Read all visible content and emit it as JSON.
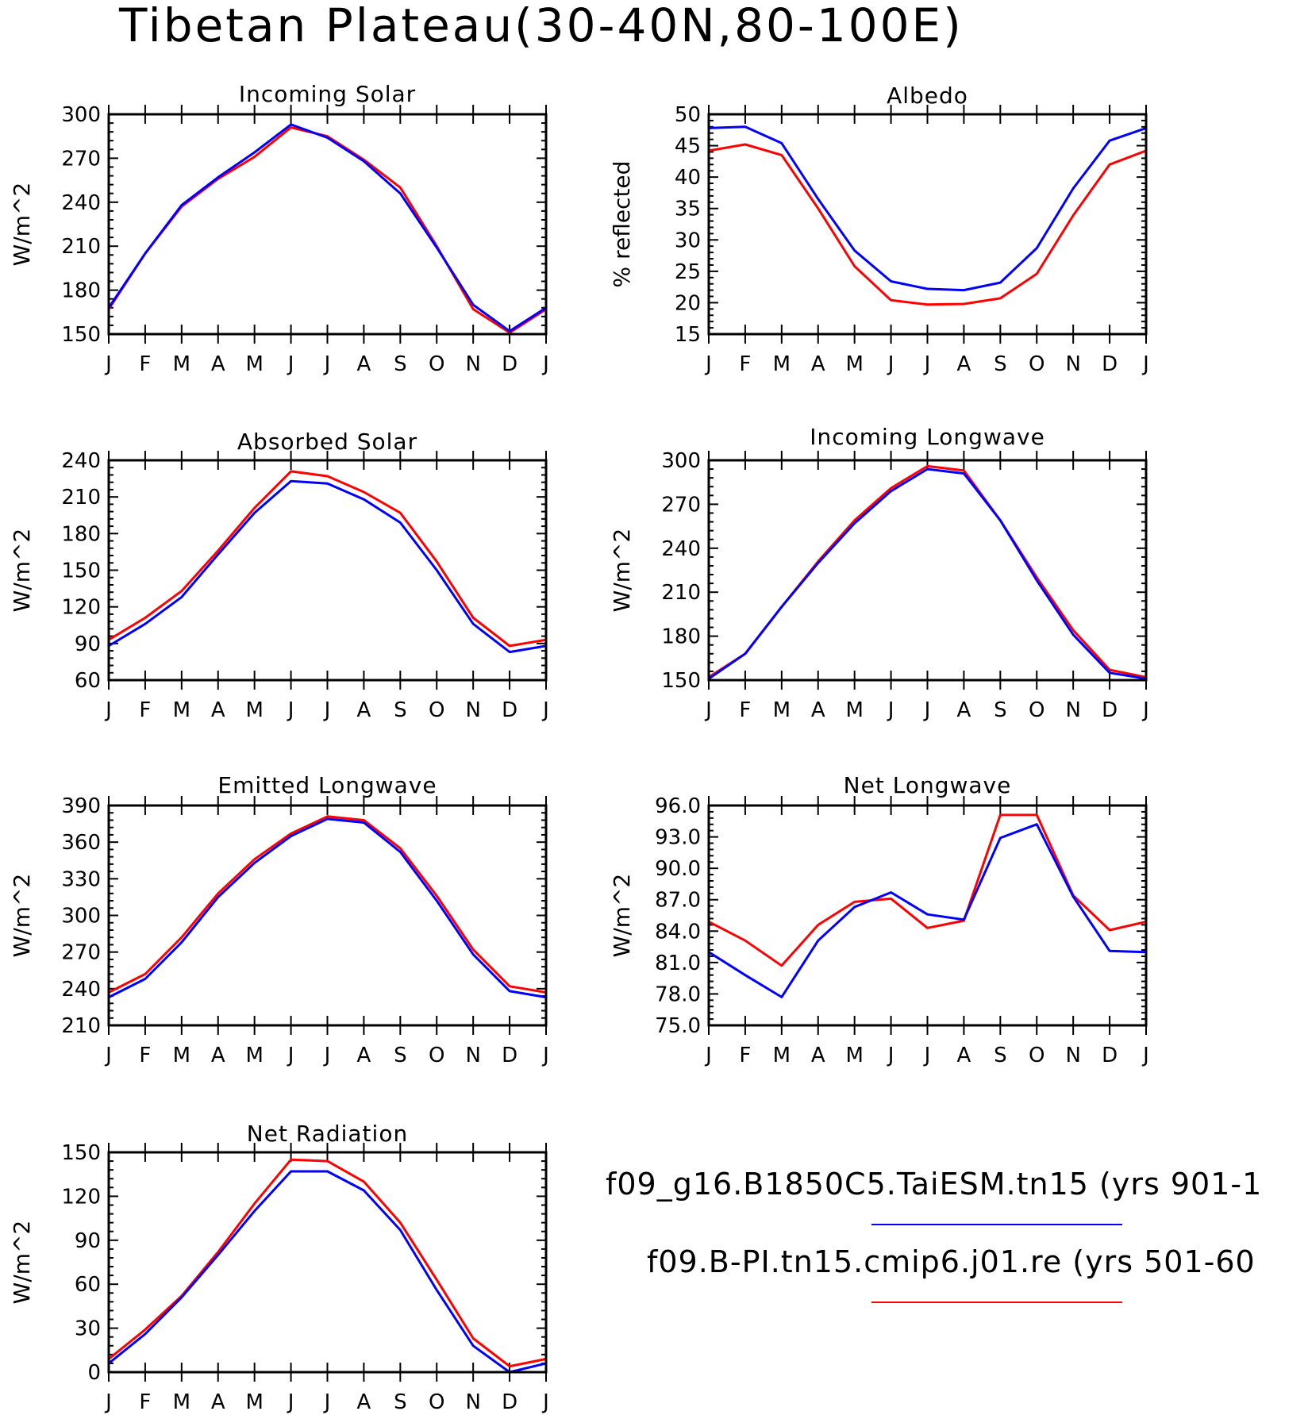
{
  "figure_title": "Tibetan Plateau(30-40N,80-100E)",
  "legend": {
    "entries": [
      {
        "label": "f09_g16.B1850C5.TaiESM.tn15 (yrs 901-1",
        "color": "#0000ff"
      },
      {
        "label": "f09.B-PI.tn15.cmip6.j01.re (yrs 501-60",
        "color": "#ff0000"
      }
    ]
  },
  "chart_data": [
    {
      "type": "line",
      "title": "Incoming Solar",
      "ylabel": "W/m^2",
      "categories": [
        "J",
        "F",
        "M",
        "A",
        "M",
        "J",
        "J",
        "A",
        "S",
        "O",
        "N",
        "D",
        "J"
      ],
      "ylim": [
        150,
        300
      ],
      "yticks": [
        "150",
        "180",
        "210",
        "240",
        "270",
        "300"
      ],
      "series": [
        {
          "color": "#ff0000",
          "values": [
            167,
            205,
            237,
            256,
            271,
            291,
            285,
            269,
            250,
            210,
            167,
            151,
            167
          ]
        },
        {
          "color": "#0000ff",
          "values": [
            168,
            205,
            238,
            257,
            274,
            293,
            284,
            268,
            246,
            209,
            170,
            152,
            168
          ]
        }
      ]
    },
    {
      "type": "line",
      "title": "Albedo",
      "ylabel": "% reflected",
      "categories": [
        "J",
        "F",
        "M",
        "A",
        "M",
        "J",
        "J",
        "A",
        "S",
        "O",
        "N",
        "D",
        "J"
      ],
      "ylim": [
        15,
        50
      ],
      "yticks": [
        "15",
        "20",
        "25",
        "30",
        "35",
        "40",
        "45",
        "50"
      ],
      "series": [
        {
          "color": "#ff0000",
          "values": [
            44.2,
            45.2,
            43.5,
            35.0,
            25.8,
            20.4,
            19.7,
            19.8,
            20.7,
            24.6,
            33.9,
            42.0,
            44.2
          ]
        },
        {
          "color": "#0000ff",
          "values": [
            47.8,
            48.0,
            45.4,
            36.5,
            28.3,
            23.4,
            22.2,
            22.0,
            23.2,
            28.7,
            38.2,
            45.8,
            47.8
          ]
        }
      ]
    },
    {
      "type": "line",
      "title": "Absorbed Solar",
      "ylabel": "W/m^2",
      "categories": [
        "J",
        "F",
        "M",
        "A",
        "M",
        "J",
        "J",
        "A",
        "S",
        "O",
        "N",
        "D",
        "J"
      ],
      "ylim": [
        60,
        240
      ],
      "yticks": [
        "60",
        "90",
        "120",
        "150",
        "180",
        "210",
        "240"
      ],
      "series": [
        {
          "color": "#ff0000",
          "values": [
            93,
            111,
            133,
            166,
            201,
            231,
            227,
            214,
            197,
            157,
            111,
            88,
            93
          ]
        },
        {
          "color": "#0000ff",
          "values": [
            88,
            106,
            128,
            163,
            197,
            223,
            221,
            208,
            189,
            150,
            106,
            83,
            88
          ]
        }
      ]
    },
    {
      "type": "line",
      "title": "Incoming Longwave",
      "ylabel": "W/m^2",
      "categories": [
        "J",
        "F",
        "M",
        "A",
        "M",
        "J",
        "J",
        "A",
        "S",
        "O",
        "N",
        "D",
        "J"
      ],
      "ylim": [
        150,
        300
      ],
      "yticks": [
        "150",
        "180",
        "210",
        "240",
        "270",
        "300"
      ],
      "series": [
        {
          "color": "#ff0000",
          "values": [
            152,
            168,
            200,
            231,
            259,
            281,
            296,
            293,
            259,
            220,
            184,
            157,
            152
          ]
        },
        {
          "color": "#0000ff",
          "values": [
            151,
            168,
            200,
            230,
            257,
            279,
            294,
            291,
            259,
            218,
            181,
            155,
            151
          ]
        }
      ]
    },
    {
      "type": "line",
      "title": "Emitted Longwave",
      "ylabel": "W/m^2",
      "categories": [
        "J",
        "F",
        "M",
        "A",
        "M",
        "J",
        "J",
        "A",
        "S",
        "O",
        "N",
        "D",
        "J"
      ],
      "ylim": [
        210,
        390
      ],
      "yticks": [
        "210",
        "240",
        "270",
        "300",
        "330",
        "360",
        "390"
      ],
      "series": [
        {
          "color": "#ff0000",
          "values": [
            237,
            252,
            282,
            318,
            346,
            367,
            381,
            378,
            355,
            316,
            272,
            242,
            237
          ]
        },
        {
          "color": "#0000ff",
          "values": [
            233,
            248,
            278,
            315,
            343,
            365,
            379,
            376,
            352,
            312,
            268,
            238,
            233
          ]
        }
      ]
    },
    {
      "type": "line",
      "title": "Net Longwave",
      "ylabel": "W/m^2",
      "categories": [
        "J",
        "F",
        "M",
        "A",
        "M",
        "J",
        "J",
        "A",
        "S",
        "O",
        "N",
        "D",
        "J"
      ],
      "ylim": [
        75.0,
        96.0
      ],
      "yticks": [
        "75.0",
        "78.0",
        "81.0",
        "84.0",
        "87.0",
        "90.0",
        "93.0",
        "96.0"
      ],
      "series": [
        {
          "color": "#ff0000",
          "values": [
            84.9,
            83.1,
            80.7,
            84.6,
            86.8,
            87.1,
            84.3,
            85.0,
            95.1,
            95.1,
            87.4,
            84.1,
            84.9
          ]
        },
        {
          "color": "#0000ff",
          "values": [
            82.0,
            79.8,
            77.7,
            83.1,
            86.3,
            87.7,
            85.6,
            85.1,
            92.9,
            94.2,
            87.3,
            82.1,
            82.0
          ]
        }
      ]
    },
    {
      "type": "line",
      "title": "Net Radiation",
      "ylabel": "W/m^2",
      "categories": [
        "J",
        "F",
        "M",
        "A",
        "M",
        "J",
        "J",
        "A",
        "S",
        "O",
        "N",
        "D",
        "J"
      ],
      "ylim": [
        0,
        150
      ],
      "yticks": [
        "0",
        "30",
        "60",
        "90",
        "120",
        "150"
      ],
      "series": [
        {
          "color": "#ff0000",
          "values": [
            9,
            29,
            52,
            82,
            115,
            145,
            144,
            130,
            102,
            63,
            23,
            4,
            9
          ]
        },
        {
          "color": "#0000ff",
          "values": [
            6,
            26,
            51,
            80,
            110,
            137,
            137,
            124,
            97,
            56,
            18,
            0,
            6
          ]
        }
      ]
    }
  ]
}
